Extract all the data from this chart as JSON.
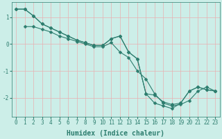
{
  "xlabel": "Humidex (Indice chaleur)",
  "line_color": "#2d7d6e",
  "bg_color": "#cceee8",
  "grid_color": "#e8b0b0",
  "xlim": [
    -0.5,
    23.5
  ],
  "ylim": [
    -2.7,
    1.55
  ],
  "yticks": [
    -2,
    -1,
    0,
    1
  ],
  "xticks": [
    0,
    1,
    2,
    3,
    4,
    5,
    6,
    7,
    8,
    9,
    10,
    11,
    12,
    13,
    14,
    15,
    16,
    17,
    18,
    19,
    20,
    21,
    22,
    23
  ],
  "line1_x": [
    0,
    1,
    2,
    3,
    4,
    5,
    6,
    7,
    8,
    9,
    10,
    11,
    12,
    13,
    14,
    15,
    16,
    17,
    18,
    19,
    20,
    21,
    22,
    23
  ],
  "line1_y": [
    1.3,
    1.3,
    1.05,
    0.75,
    0.6,
    0.45,
    0.3,
    0.15,
    0.05,
    -0.05,
    -0.05,
    0.2,
    0.3,
    -0.3,
    -0.55,
    -1.85,
    -1.9,
    -2.15,
    -2.25,
    -2.2,
    -1.75,
    -1.6,
    -1.7,
    -1.75
  ],
  "line2_x": [
    1,
    2,
    3,
    4,
    5,
    6,
    7,
    8,
    9,
    10,
    11,
    12,
    13,
    14,
    15,
    16,
    17,
    18,
    19,
    20,
    21,
    22,
    23
  ],
  "line2_y": [
    0.65,
    0.65,
    0.55,
    0.45,
    0.3,
    0.2,
    0.1,
    0.0,
    -0.1,
    -0.1,
    0.05,
    -0.3,
    -0.5,
    -1.0,
    -1.3,
    -1.85,
    -2.2,
    -2.3,
    -2.25,
    -2.1,
    -1.75,
    -1.6,
    -1.75
  ],
  "line3_x": [
    0,
    1,
    2,
    3,
    4,
    5,
    6,
    7,
    8,
    9,
    10,
    11,
    12,
    13,
    14,
    15,
    16,
    17,
    18,
    19,
    20,
    21,
    22,
    23
  ],
  "line3_y": [
    1.3,
    1.3,
    1.05,
    0.75,
    0.6,
    0.45,
    0.3,
    0.15,
    0.05,
    -0.05,
    -0.05,
    0.2,
    0.3,
    -0.3,
    -0.55,
    -1.85,
    -2.2,
    -2.3,
    -2.4,
    -2.2,
    -1.75,
    -1.6,
    -1.7,
    -1.75
  ],
  "marker": "D",
  "marker_size": 2.5,
  "line_width": 0.8,
  "xlabel_fontsize": 7,
  "tick_fontsize": 5.5
}
